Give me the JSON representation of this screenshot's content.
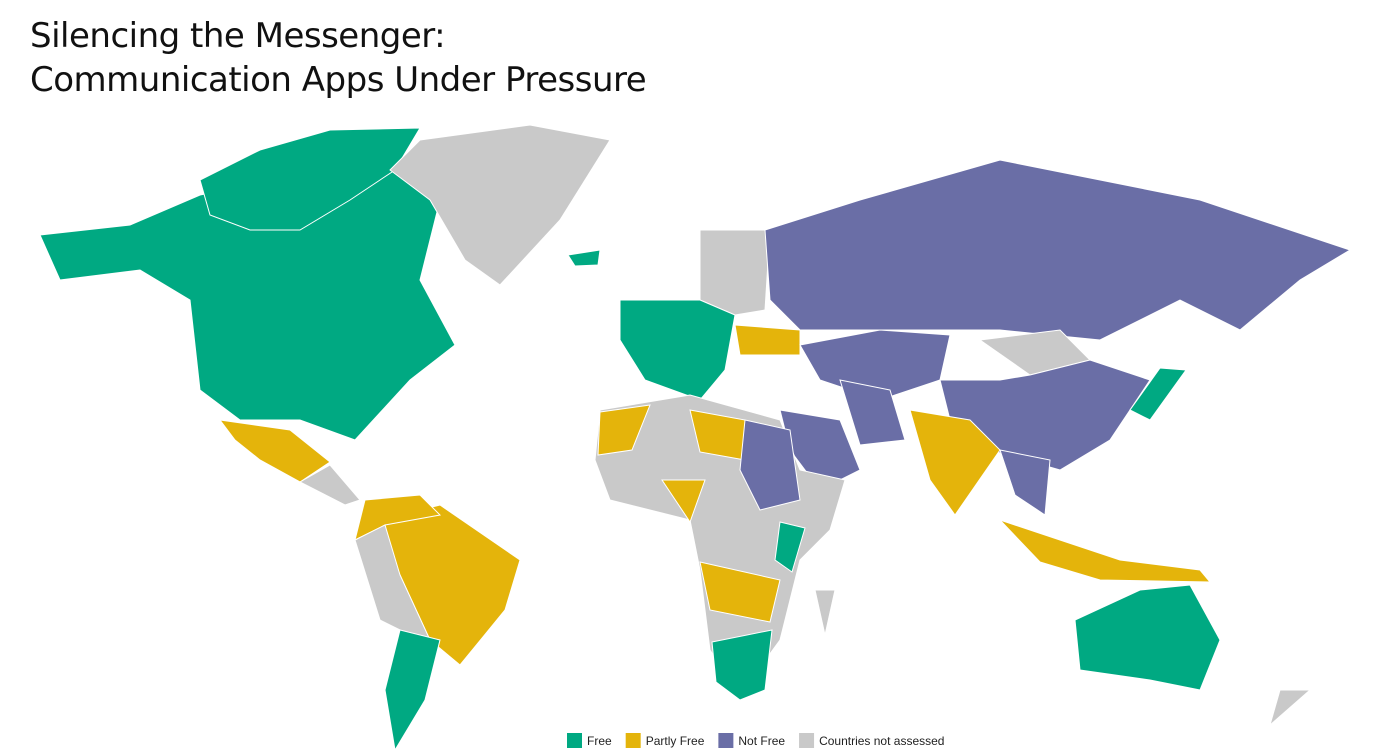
{
  "title": {
    "line1": "Silencing the Messenger:",
    "line2": "Communication Apps Under Pressure"
  },
  "legend": [
    {
      "name": "Free",
      "color": "#00a982"
    },
    {
      "name": "Partly Free",
      "color": "#e4b40b"
    },
    {
      "name": "Not Free",
      "color": "#6a6ea6"
    },
    {
      "name": "Countries not assessed",
      "color": "#c9c9c9"
    }
  ]
}
